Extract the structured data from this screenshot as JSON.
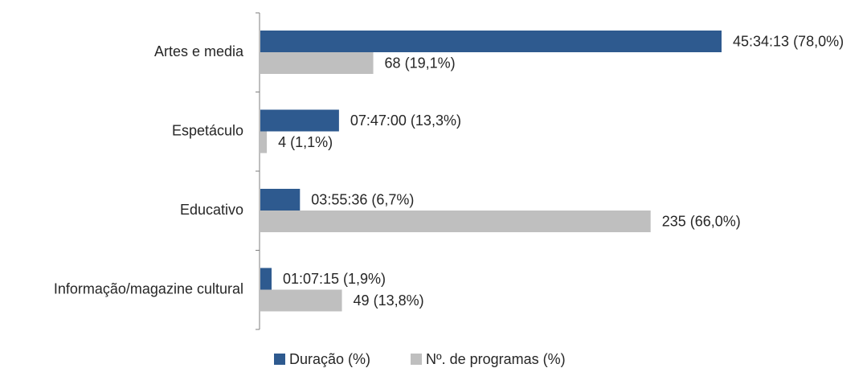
{
  "chart_data": {
    "type": "bar",
    "orientation": "horizontal",
    "categories": [
      "Artes e media",
      "Espetáculo",
      "Educativo",
      "Informação/magazine cultural"
    ],
    "series": [
      {
        "name": "Duração (%)",
        "color": "#2e5a8f",
        "values": [
          78.0,
          13.3,
          6.7,
          1.9
        ],
        "value_labels": [
          "45:34:13 (78,0%)",
          "07:47:00 (13,3%)",
          "03:55:36 (6,7%)",
          "01:07:15 (1,9%)"
        ]
      },
      {
        "name": "Nº. de programas (%)",
        "color": "#bfbfbf",
        "values": [
          19.1,
          1.1,
          66.0,
          13.8
        ],
        "value_labels": [
          "68 (19,1%)",
          "4 (1,1%)",
          "235 (66,0%)",
          "49 (13,8%)"
        ]
      }
    ]
  }
}
